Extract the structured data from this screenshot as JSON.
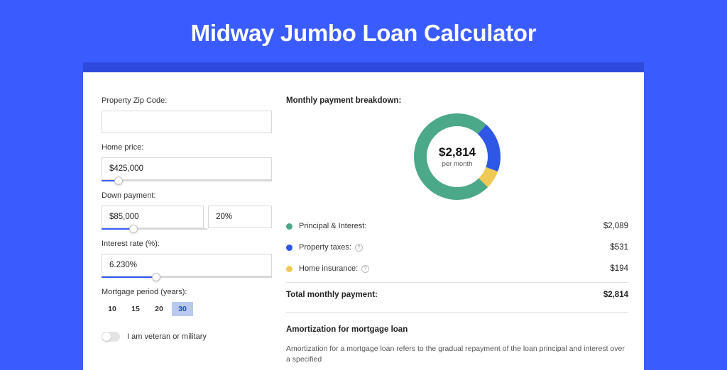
{
  "page": {
    "title": "Midway Jumbo Loan Calculator",
    "bg_color": "#3a5cff",
    "header_band_color": "#2e4adc",
    "card_bg": "#ffffff"
  },
  "form": {
    "zip": {
      "label": "Property Zip Code:",
      "value": ""
    },
    "home_price": {
      "label": "Home price:",
      "value": "$425,000",
      "slider_pct": 10
    },
    "down_payment": {
      "label": "Down payment:",
      "amount": "$85,000",
      "pct": "20%",
      "slider_pct": 30
    },
    "interest_rate": {
      "label": "Interest rate (%):",
      "value": "6.230%",
      "slider_pct": 32
    },
    "period": {
      "label": "Mortgage period (years):",
      "options": [
        "10",
        "15",
        "20",
        "30"
      ],
      "selected": "30"
    },
    "veteran": {
      "label": "I am veteran or military",
      "checked": false
    }
  },
  "breakdown": {
    "title": "Monthly payment breakdown:",
    "center_amount": "$2,814",
    "center_sub": "per month",
    "donut": {
      "size": 122,
      "thickness": 18,
      "slices": [
        {
          "key": "principal_interest",
          "value": 2089,
          "color": "#4ba888"
        },
        {
          "key": "property_taxes",
          "value": 531,
          "color": "#2e57e6"
        },
        {
          "key": "home_insurance",
          "value": 194,
          "color": "#eec955"
        }
      ],
      "start_angle_deg": 45
    },
    "items": [
      {
        "label": "Principal & Interest:",
        "value": "$2,089",
        "color": "#4ba888",
        "info": false
      },
      {
        "label": "Property taxes:",
        "value": "$531",
        "color": "#2e57e6",
        "info": true
      },
      {
        "label": "Home insurance:",
        "value": "$194",
        "color": "#eec955",
        "info": true
      }
    ],
    "total": {
      "label": "Total monthly payment:",
      "value": "$2,814"
    }
  },
  "amort": {
    "title": "Amortization for mortgage loan",
    "text": "Amortization for a mortgage loan refers to the gradual repayment of the loan principal and interest over a specified"
  }
}
